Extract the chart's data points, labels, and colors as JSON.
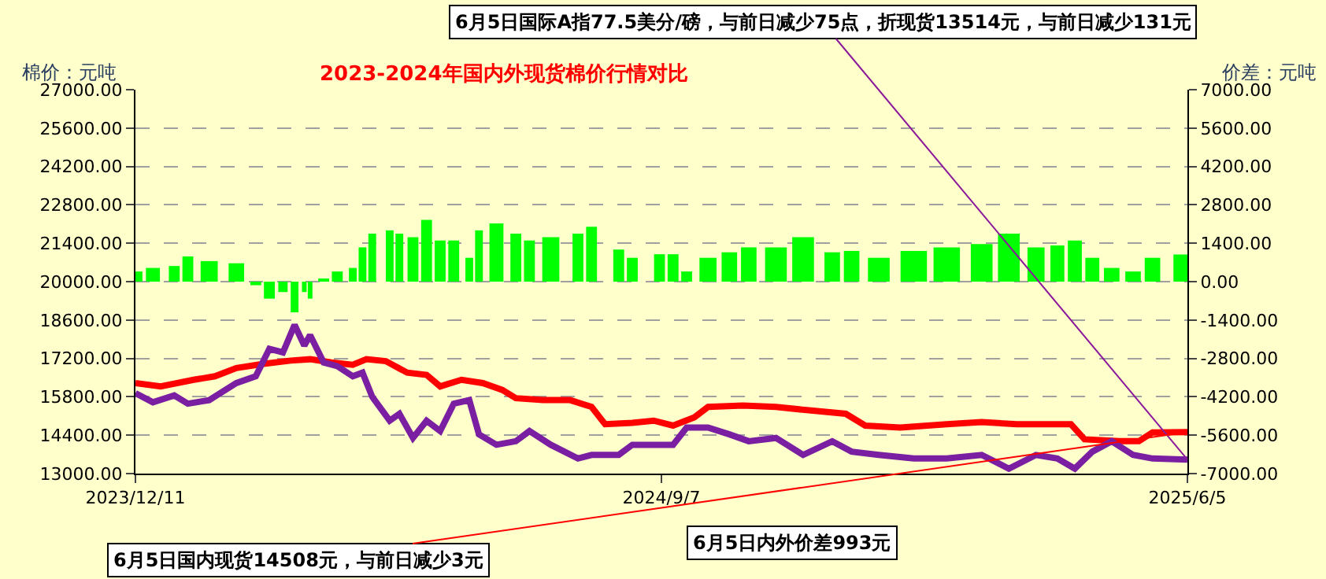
{
  "chart_data": {
    "type": "line",
    "title": "2023-2024年国内外现货棉价行情对比",
    "ylabel": "棉价：元吨",
    "y2label": "价差：元吨",
    "annotations": [
      {
        "text": "6月5日国际A指77.5美分/磅，与前日减少75点，折现货13514元，与前日减少131元",
        "x": "2025-06-05",
        "y": 13510
      },
      {
        "text": "6月5日国内现货14508元，与前日减少3元",
        "x": "2025-06-05",
        "y": 14510
      },
      "6月5日内外价差993元"
    ],
    "xlim": [
      "2023-12-11",
      "2025-06-05"
    ],
    "xticks": [
      {
        "value": "2023-12-11",
        "label": "2023/12/11"
      },
      {
        "value": "2024-09-07",
        "label": "2024/9/7"
      },
      {
        "value": "2025-06-05",
        "label": "2025/6/5"
      }
    ],
    "ylim": [
      13000,
      27000
    ],
    "yticks": [
      {
        "value": 13000,
        "label": "13000.00"
      },
      {
        "value": 14400,
        "label": "14400.00"
      },
      {
        "value": 15800,
        "label": "15800.00"
      },
      {
        "value": 17200,
        "label": "17200.00"
      },
      {
        "value": 18600,
        "label": "18600.00"
      },
      {
        "value": 20000,
        "label": "20000.00"
      },
      {
        "value": 21400,
        "label": "21400.00"
      },
      {
        "value": 22800,
        "label": "22800.00"
      },
      {
        "value": 24200,
        "label": "24200.00"
      },
      {
        "value": 25600,
        "label": "25600.00"
      },
      {
        "value": 27000,
        "label": "27000.00"
      }
    ],
    "y2lim": [
      -7000,
      7000
    ],
    "y2ticks": [
      {
        "value": -7000,
        "label": "-7000.00"
      },
      {
        "value": -5600,
        "label": "-5600.00"
      },
      {
        "value": -4200,
        "label": "-4200.00"
      },
      {
        "value": -2800,
        "label": "-2800.00"
      },
      {
        "value": -1400,
        "label": "-1400.00"
      },
      {
        "value": 0,
        "label": "0.00"
      },
      {
        "value": 1400,
        "label": "1400.00"
      },
      {
        "value": 2800,
        "label": "2800.00"
      },
      {
        "value": 4200,
        "label": "4200.00"
      },
      {
        "value": 5600,
        "label": "5600.00"
      },
      {
        "value": 7000,
        "label": "7000.00"
      }
    ],
    "grid": "y",
    "series": [
      {
        "type": "bar",
        "axis": "y2",
        "color": "#00ff00",
        "x": [
          "2023-12-11",
          "2023-12-20",
          "2023-12-31",
          "2024-01-07",
          "2024-01-18",
          "2024-02-01",
          "2024-02-11",
          "2024-02-18",
          "2024-02-25",
          "2024-03-02",
          "2024-03-07",
          "2024-03-10",
          "2024-03-17",
          "2024-03-24",
          "2024-04-01",
          "2024-04-06",
          "2024-04-11",
          "2024-04-20",
          "2024-04-25",
          "2024-05-02",
          "2024-05-09",
          "2024-05-16",
          "2024-05-23",
          "2024-05-31",
          "2024-06-05",
          "2024-06-14",
          "2024-06-24",
          "2024-07-01",
          "2024-07-12",
          "2024-07-26",
          "2024-08-02",
          "2024-08-16",
          "2024-08-23",
          "2024-09-06",
          "2024-09-13",
          "2024-09-20",
          "2024-10-01",
          "2024-10-12",
          "2024-10-22",
          "2024-11-05",
          "2024-11-19",
          "2024-12-04",
          "2024-12-14",
          "2024-12-28",
          "2025-01-15",
          "2025-02-01",
          "2025-02-19",
          "2025-03-05",
          "2025-03-19",
          "2025-03-30",
          "2025-04-08",
          "2025-04-17",
          "2025-04-27",
          "2025-05-08",
          "2025-05-18",
          "2025-06-05"
        ],
        "values": [
          370,
          500,
          570,
          920,
          750,
          670,
          -130,
          -620,
          -380,
          -1120,
          -380,
          -620,
          80,
          370,
          500,
          1250,
          1750,
          1870,
          1750,
          1620,
          2250,
          1500,
          1500,
          870,
          1870,
          2120,
          1750,
          1500,
          1620,
          1750,
          2000,
          1170,
          870,
          1000,
          1000,
          370,
          870,
          1070,
          1250,
          1250,
          1620,
          1070,
          1120,
          870,
          1120,
          1250,
          1370,
          1750,
          1250,
          1320,
          1500,
          870,
          500,
          370,
          870,
          990
        ]
      },
      {
        "color": "#ff0000",
        "x": [
          "2023-12-11",
          "2023-12-24",
          "2024-01-10",
          "2024-01-21",
          "2024-02-01",
          "2024-02-15",
          "2024-02-29",
          "2024-03-10",
          "2024-03-21",
          "2024-04-01",
          "2024-04-08",
          "2024-04-18",
          "2024-04-29",
          "2024-05-09",
          "2024-05-16",
          "2024-05-27",
          "2024-06-07",
          "2024-06-17",
          "2024-06-24",
          "2024-07-08",
          "2024-07-22",
          "2024-08-02",
          "2024-08-09",
          "2024-08-23",
          "2024-09-03",
          "2024-09-13",
          "2024-09-24",
          "2024-10-01",
          "2024-10-19",
          "2024-11-05",
          "2024-11-23",
          "2024-12-11",
          "2024-12-21",
          "2025-01-08",
          "2025-02-01",
          "2025-02-19",
          "2025-03-09",
          "2025-04-06",
          "2025-04-13",
          "2025-05-01",
          "2025-05-11",
          "2025-05-18",
          "2025-06-05"
        ],
        "values": [
          16300,
          16180,
          16420,
          16550,
          16850,
          17000,
          17120,
          17170,
          17050,
          16970,
          17170,
          17100,
          16680,
          16600,
          16180,
          16420,
          16300,
          16050,
          15750,
          15680,
          15680,
          15430,
          14800,
          14850,
          14930,
          14750,
          15050,
          15430,
          15480,
          15430,
          15300,
          15180,
          14750,
          14680,
          14800,
          14880,
          14800,
          14800,
          14250,
          14180,
          14180,
          14500,
          14510
        ]
      },
      {
        "color": "#7b1fa2",
        "x": [
          "2023-12-11",
          "2023-12-20",
          "2023-12-31",
          "2024-01-07",
          "2024-01-18",
          "2024-02-01",
          "2024-02-11",
          "2024-02-18",
          "2024-02-25",
          "2024-03-02",
          "2024-03-07",
          "2024-03-10",
          "2024-03-17",
          "2024-03-24",
          "2024-04-01",
          "2024-04-06",
          "2024-04-11",
          "2024-04-20",
          "2024-04-25",
          "2024-05-02",
          "2024-05-09",
          "2024-05-16",
          "2024-05-23",
          "2024-05-31",
          "2024-06-05",
          "2024-06-14",
          "2024-06-24",
          "2024-07-01",
          "2024-07-12",
          "2024-07-26",
          "2024-08-02",
          "2024-08-16",
          "2024-08-23",
          "2024-09-06",
          "2024-09-13",
          "2024-09-20",
          "2024-10-01",
          "2024-10-12",
          "2024-10-22",
          "2024-11-05",
          "2024-11-19",
          "2024-12-04",
          "2024-12-14",
          "2024-12-28",
          "2025-01-15",
          "2025-02-01",
          "2025-02-19",
          "2025-03-05",
          "2025-03-19",
          "2025-03-30",
          "2025-04-08",
          "2025-04-17",
          "2025-04-27",
          "2025-05-08",
          "2025-05-18",
          "2025-06-05"
        ],
        "values": [
          15930,
          15600,
          15850,
          15550,
          15680,
          16300,
          16550,
          17550,
          17420,
          18420,
          17670,
          18050,
          17050,
          16920,
          16550,
          16680,
          15800,
          14930,
          15180,
          14300,
          14930,
          14550,
          15550,
          15680,
          14430,
          14050,
          14180,
          14550,
          14050,
          13550,
          13680,
          13680,
          14050,
          14050,
          14050,
          14680,
          14680,
          14430,
          14180,
          14300,
          13680,
          14180,
          13800,
          13680,
          13550,
          13550,
          13680,
          13180,
          13680,
          13550,
          13180,
          13800,
          14180,
          13680,
          13550,
          13510
        ]
      }
    ]
  }
}
